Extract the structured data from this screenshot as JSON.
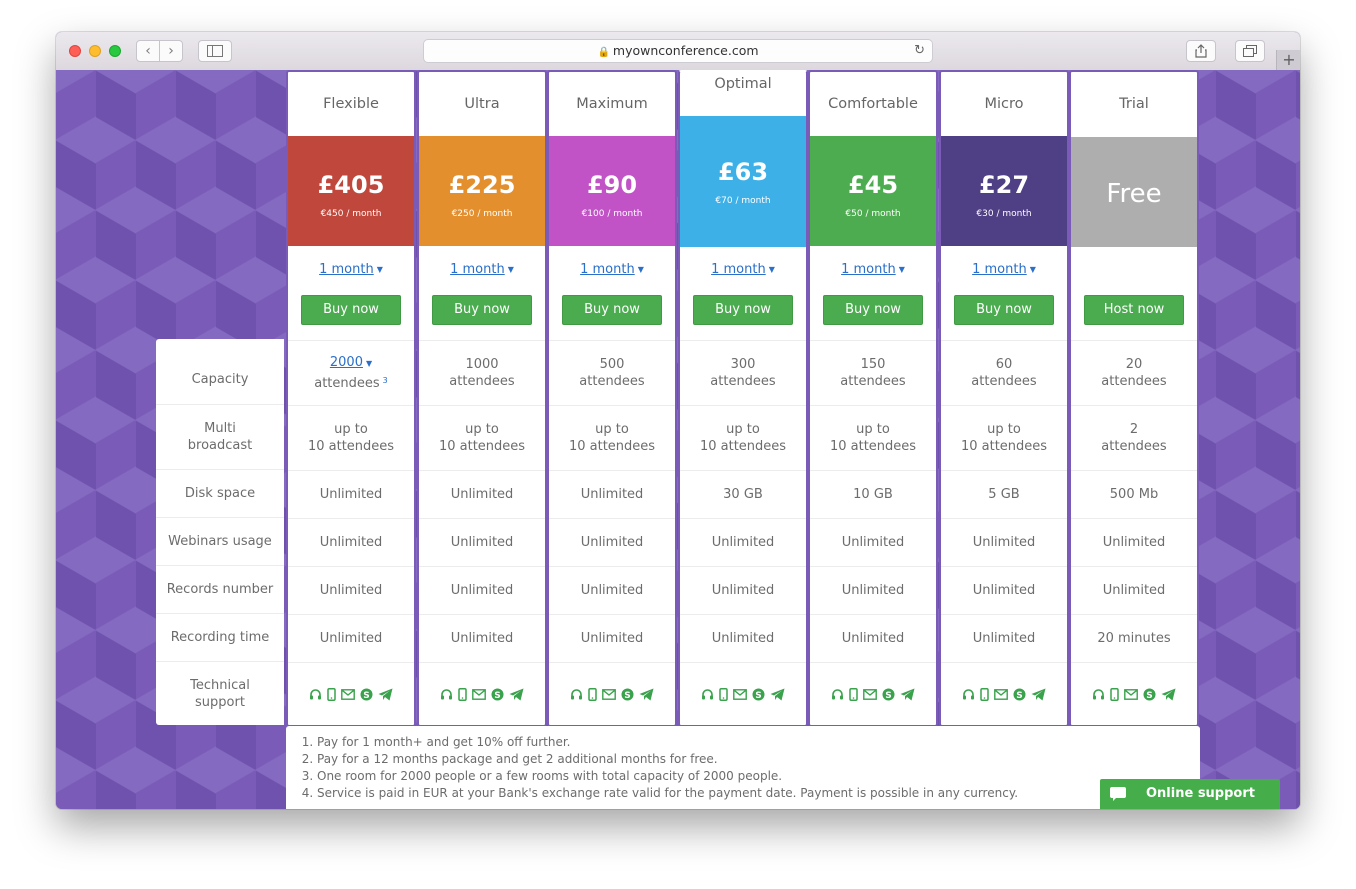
{
  "browser": {
    "url": "myownconference.com",
    "back_glyph": "‹",
    "forward_glyph": "›",
    "newtab_glyph": "+"
  },
  "colors": {
    "accent_green": "#4bac4f",
    "link_blue": "#2a6fc9",
    "background_purple": "#7a5cb8"
  },
  "feature_labels": {
    "capacity": "Capacity",
    "multi": "Multi broadcast",
    "disk": "Disk space",
    "webinars": "Webinars usage",
    "records": "Records number",
    "recording": "Recording time",
    "support": "Technical support"
  },
  "plans": [
    {
      "name": "Flexible",
      "price": "£405",
      "sub": "€450 / month",
      "color": "#c0473b",
      "period": "1 month",
      "button": "Buy now",
      "cap_num": "2000",
      "cap_unit": "attendees",
      "cap_sup": "3",
      "multi_1": "up to",
      "multi_2": "10 attendees",
      "disk": "Unlimited",
      "webinars": "Unlimited",
      "records": "Unlimited",
      "recording": "Unlimited"
    },
    {
      "name": "Ultra",
      "price": "£225",
      "sub": "€250 / month",
      "color": "#e38f2d",
      "period": "1 month",
      "button": "Buy now",
      "cap_num": "1000",
      "cap_unit": "attendees",
      "multi_1": "up to",
      "multi_2": "10 attendees",
      "disk": "Unlimited",
      "webinars": "Unlimited",
      "records": "Unlimited",
      "recording": "Unlimited"
    },
    {
      "name": "Maximum",
      "price": "£90",
      "sub": "€100 / month",
      "color": "#c153c7",
      "period": "1 month",
      "button": "Buy now",
      "cap_num": "500",
      "cap_unit": "attendees",
      "multi_1": "up to",
      "multi_2": "10 attendees",
      "disk": "Unlimited",
      "webinars": "Unlimited",
      "records": "Unlimited",
      "recording": "Unlimited"
    },
    {
      "name": "Optimal",
      "price": "£63",
      "sub": "€70 / month",
      "color": "#3db0e8",
      "period": "1 month",
      "button": "Buy now",
      "cap_num": "300",
      "cap_unit": "attendees",
      "multi_1": "up to",
      "multi_2": "10 attendees",
      "disk": "30 GB",
      "webinars": "Unlimited",
      "records": "Unlimited",
      "recording": "Unlimited"
    },
    {
      "name": "Comfortable",
      "price": "£45",
      "sub": "€50 / month",
      "color": "#4dac50",
      "period": "1 month",
      "button": "Buy now",
      "cap_num": "150",
      "cap_unit": "attendees",
      "multi_1": "up to",
      "multi_2": "10 attendees",
      "disk": "10 GB",
      "webinars": "Unlimited",
      "records": "Unlimited",
      "recording": "Unlimited"
    },
    {
      "name": "Micro",
      "price": "£27",
      "sub": "€30 / month",
      "color": "#4f3f84",
      "period": "1 month",
      "button": "Buy now",
      "cap_num": "60",
      "cap_unit": "attendees",
      "multi_1": "up to",
      "multi_2": "10 attendees",
      "disk": "5 GB",
      "webinars": "Unlimited",
      "records": "Unlimited",
      "recording": "Unlimited"
    },
    {
      "name": "Trial",
      "price": "Free",
      "color": "#aeaeae",
      "button": "Host now",
      "cap_num": "20",
      "cap_unit": "attendees",
      "multi_1": "2",
      "multi_2": "attendees",
      "disk": "500 Mb",
      "webinars": "Unlimited",
      "records": "Unlimited",
      "recording": "20 minutes"
    }
  ],
  "support_icons": [
    "headset-icon",
    "phone-icon",
    "mail-icon",
    "skype-icon",
    "telegram-icon"
  ],
  "footnotes": [
    "Pay for 1 month+ and get 10% off further.",
    "Pay for a 12 months package and get 2 additional months for free.",
    "One room for 2000 people or a few rooms with total capacity of 2000 people.",
    "Service is paid in EUR at your Bank's exchange rate valid for the payment date. Payment is possible in any currency."
  ],
  "online_support": "Online support"
}
